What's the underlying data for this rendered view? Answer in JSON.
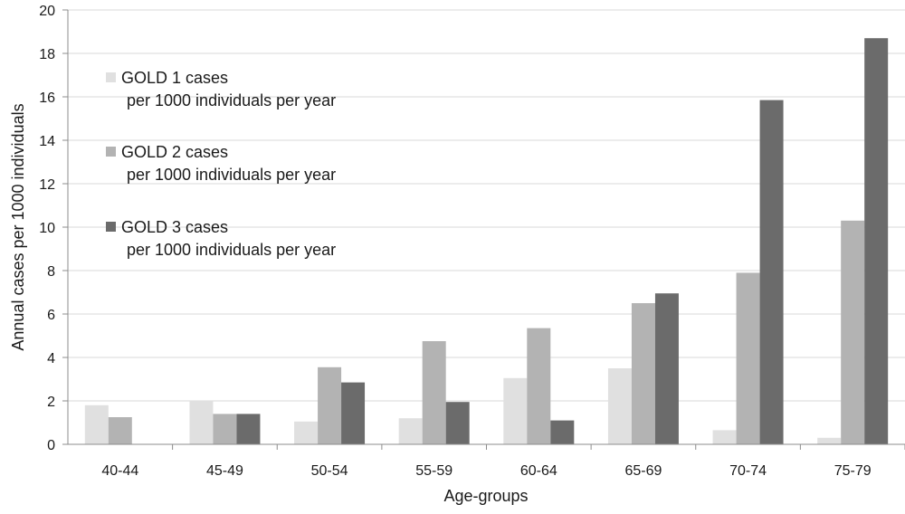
{
  "chart_data": {
    "type": "bar",
    "title": "",
    "xlabel": "Age-groups",
    "ylabel": "Annual cases per 1000 individuals",
    "ylim": [
      0,
      20
    ],
    "yticks": [
      0,
      2,
      4,
      6,
      8,
      10,
      12,
      14,
      16,
      18,
      20
    ],
    "grid": true,
    "legend_position": "upper-left",
    "categories": [
      "40-44",
      "45-49",
      "50-54",
      "55-59",
      "60-64",
      "65-69",
      "70-74",
      "75-79"
    ],
    "series": [
      {
        "legend_line1": "GOLD 1 cases",
        "legend_line2": "per 1000 individuals per year",
        "color": "#e0e0e0",
        "values": [
          1.8,
          2.0,
          1.05,
          1.2,
          3.05,
          3.5,
          0.65,
          0.3
        ]
      },
      {
        "legend_line1": "GOLD 2 cases",
        "legend_line2": "per 1000 individuals per year",
        "color": "#b3b3b3",
        "values": [
          1.25,
          1.4,
          3.55,
          4.75,
          5.35,
          6.5,
          7.9,
          10.3
        ]
      },
      {
        "legend_line1": "GOLD 3 cases",
        "legend_line2": "per 1000 individuals per year",
        "color": "#6b6b6b",
        "values": [
          0,
          1.4,
          2.85,
          1.95,
          1.1,
          6.95,
          15.85,
          18.7
        ]
      }
    ]
  }
}
